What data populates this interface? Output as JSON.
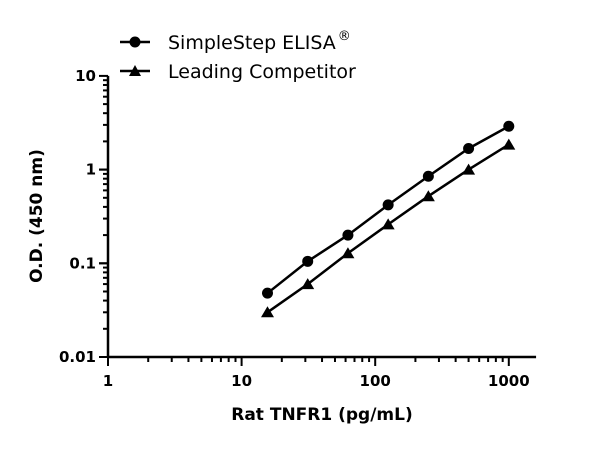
{
  "chart_data": {
    "type": "line",
    "title": "",
    "xlabel": "Rat TNFR1 (pg/mL)",
    "ylabel": "O.D. (450 nm)",
    "xscale": "log",
    "yscale": "log",
    "xlim": [
      1,
      1600
    ],
    "ylim": [
      0.01,
      10
    ],
    "xticks": [
      "1",
      "10",
      "100",
      "1000"
    ],
    "yticks": [
      "0.01",
      "0.1",
      "1",
      "10"
    ],
    "grid": false,
    "legend_position": "top-left",
    "x": [
      15.625,
      31.25,
      62.5,
      125,
      250,
      500,
      1000
    ],
    "series": [
      {
        "name": "SimpleStep ELISA",
        "name_sup": "®",
        "marker": "circle",
        "color": "#000000",
        "values": [
          0.048,
          0.105,
          0.2,
          0.42,
          0.85,
          1.68,
          2.9
        ]
      },
      {
        "name": "Leading Competitor",
        "marker": "triangle",
        "color": "#000000",
        "values": [
          0.03,
          0.06,
          0.128,
          0.26,
          0.52,
          1.0,
          1.85
        ]
      }
    ]
  }
}
